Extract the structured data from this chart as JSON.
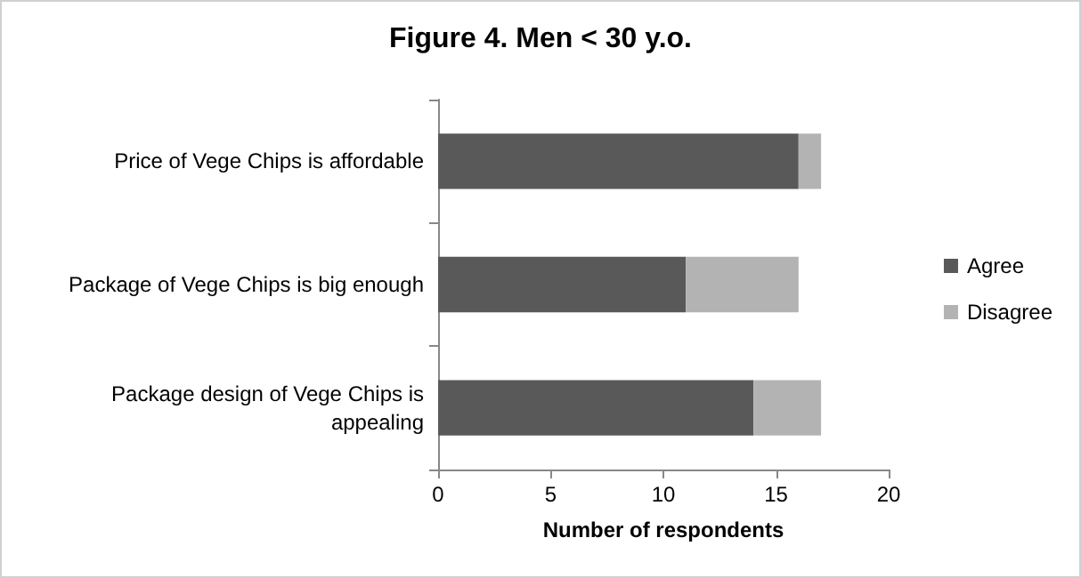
{
  "chart_data": {
    "type": "bar",
    "title": "Figure 4. Men < 30 y.o.",
    "xlabel": "Number of respondents",
    "orientation": "horizontal",
    "stacked": true,
    "categories": [
      "Price of Vege Chips is affordable",
      "Package of Vege Chips is big enough",
      "Package design of Vege Chips is\nappealing"
    ],
    "series": [
      {
        "name": "Agree",
        "color": "#595959",
        "values": [
          16,
          11,
          14
        ]
      },
      {
        "name": "Disagree",
        "color": "#b3b3b3",
        "values": [
          1,
          5,
          3
        ]
      }
    ],
    "xlim": [
      0,
      20
    ],
    "xticks": [
      0,
      5,
      10,
      15,
      20
    ],
    "grid": false,
    "legend": "right"
  }
}
